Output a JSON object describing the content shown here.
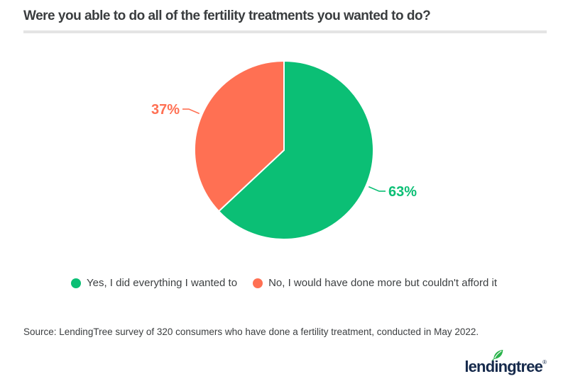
{
  "header": {
    "title": "Were you able to do all of the fertility treatments you wanted to do?"
  },
  "chart_data": {
    "type": "pie",
    "title": "Were you able to do all of the fertility treatments you wanted to do?",
    "labels": [
      "Yes, I did everything I wanted to",
      "No, I would have done more but couldn't afford it"
    ],
    "values": [
      63,
      37
    ],
    "data_labels": [
      "63%",
      "37%"
    ],
    "colors": [
      "#0bbf75",
      "#ff7053"
    ],
    "start_angle_deg": 0,
    "direction": "clockwise",
    "legend_position": "bottom",
    "slice_separator_color": "#ffffff"
  },
  "footer": {
    "source": "Source: LendingTree survey of 320 consumers who have done a fertility treatment, conducted in May 2022.",
    "logo_text": "lendingtree",
    "logo_registered_mark": "®"
  },
  "style": {
    "accent_green": "#0bbf75",
    "accent_coral": "#ff7053",
    "text_dark": "#3b3e40",
    "divider_gray": "#e4e4e4",
    "logo_navy": "#15294b",
    "leaf_green": "#2ab34b"
  }
}
